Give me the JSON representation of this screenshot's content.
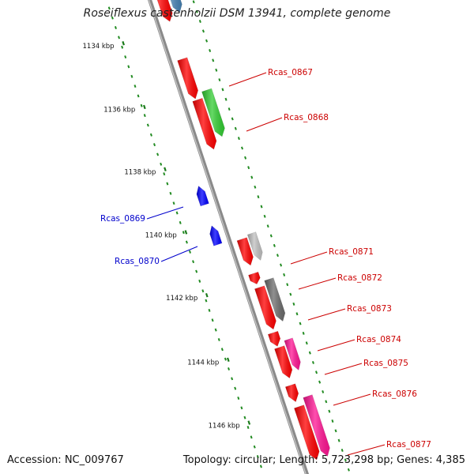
{
  "title": "Roseiflexus castenholzii DSM 13941, complete genome",
  "footer": {
    "accession": "Accession: NC_009767",
    "topology": "Topology: circular; Length: 5,723,298 bp; Genes: 4,385"
  },
  "colors": {
    "backbone": "#8a8a8a",
    "tick": "#228b22",
    "tick_label": "#111111",
    "forward_label": "#cc0000",
    "reverse_label": "#0000cc",
    "cds_red": "#ff0000",
    "blue_gene": "#0000ff",
    "steel_blue": "#4682b4",
    "light_steel_blue": "#9cc6e6",
    "green": "#32cd32",
    "light_gray": "#c0c0c0",
    "dark_gray": "#6b6b6b",
    "magenta": "#ff1493"
  },
  "ticks": [
    {
      "label": "1134 kbp"
    },
    {
      "label": "1136 kbp"
    },
    {
      "label": "1138 kbp"
    },
    {
      "label": "1140 kbp"
    },
    {
      "label": "1142 kbp"
    },
    {
      "label": "1144 kbp"
    },
    {
      "label": "1146 kbp"
    }
  ],
  "gene_labels": [
    {
      "name": "Rcas_0867",
      "strand": "forward"
    },
    {
      "name": "Rcas_0868",
      "strand": "forward"
    },
    {
      "name": "Rcas_0869",
      "strand": "reverse"
    },
    {
      "name": "Rcas_0870",
      "strand": "reverse"
    },
    {
      "name": "Rcas_0871",
      "strand": "forward"
    },
    {
      "name": "Rcas_0872",
      "strand": "forward"
    },
    {
      "name": "Rcas_0873",
      "strand": "forward"
    },
    {
      "name": "Rcas_0874",
      "strand": "forward"
    },
    {
      "name": "Rcas_0875",
      "strand": "forward"
    },
    {
      "name": "Rcas_0876",
      "strand": "forward"
    },
    {
      "name": "Rcas_0877",
      "strand": "forward"
    }
  ]
}
